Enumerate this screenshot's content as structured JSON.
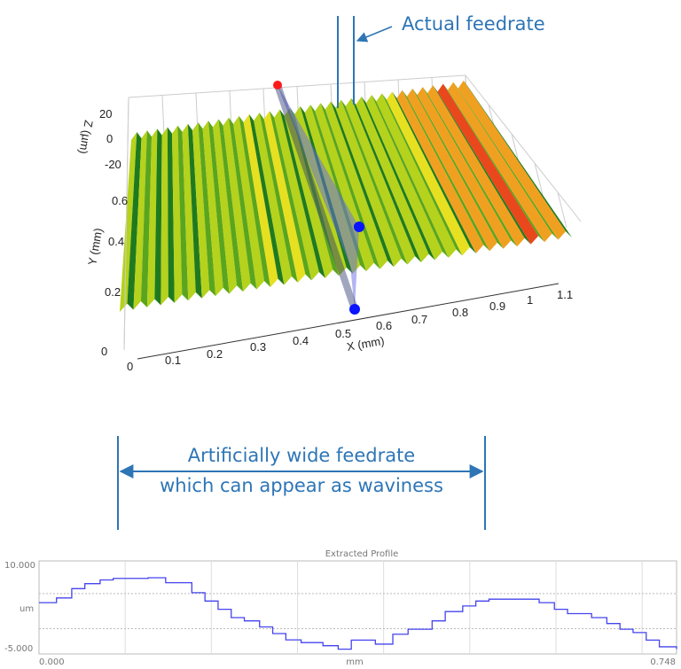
{
  "annotations": {
    "actual_feedrate": "Actual feedrate",
    "wide_line1": "Artificially wide feedrate",
    "wide_line2": "which can appear as waviness",
    "color": "#2E75B6"
  },
  "chart_data": [
    {
      "type": "surface3d",
      "x_axis": {
        "label": "X (mm)",
        "ticks": [
          "0",
          "0.1",
          "0.2",
          "0.3",
          "0.4",
          "0.5",
          "0.6",
          "0.7",
          "0.8",
          "0.9",
          "1",
          "1.1"
        ],
        "range": [
          0,
          1.1
        ]
      },
      "y_axis": {
        "label": "Y (mm)",
        "ticks": [
          "0",
          "0.2",
          "0.4",
          "0.6"
        ]
      },
      "z_axis": {
        "label": "Z (µm)",
        "ticks": [
          "20",
          "0",
          "-20"
        ]
      },
      "colormap": [
        "#1f7a1f",
        "#5aa51e",
        "#b5d21c",
        "#e6e020",
        "#f0a020",
        "#e8481c"
      ],
      "ridge_count": 33,
      "profile_plane_color": "#6a6ae8",
      "markers": [
        {
          "color": "#ff1a1a"
        },
        {
          "color": "#0a14ff"
        },
        {
          "color": "#0a14ff"
        }
      ]
    },
    {
      "type": "line",
      "title": "Extracted Profile",
      "xlabel": "mm",
      "ylabel": "um",
      "x_tick_labels": [
        "0.000",
        "0.748"
      ],
      "y_tick_labels": [
        "10.000",
        "-5.000"
      ],
      "xlim": [
        0,
        0.748
      ],
      "ylim": [
        -5,
        10
      ],
      "grid": true,
      "reference_lines": [
        5.3,
        -0.35
      ],
      "line_color": "#4444ee",
      "x": [
        0,
        0.0205,
        0.0384,
        0.0538,
        0.0717,
        0.0871,
        0.1281,
        0.1486,
        0.1793,
        0.1947,
        0.2101,
        0.2255,
        0.2409,
        0.2588,
        0.2742,
        0.2896,
        0.3075,
        0.3331,
        0.351,
        0.3664,
        0.3818,
        0.3946,
        0.4151,
        0.433,
        0.4612,
        0.4766,
        0.4971,
        0.5125,
        0.5279,
        0.5689,
        0.5868,
        0.6047,
        0.6201,
        0.6483,
        0.6662,
        0.6816,
        0.697,
        0.7124,
        0.7278,
        0.748
      ],
      "y": [
        3.84,
        4.6,
        6.1,
        6.9,
        7.5,
        7.75,
        7.86,
        7.05,
        5.45,
        4.1,
        2.77,
        1.43,
        0.9,
        -0.07,
        -1.14,
        -2.16,
        -2.6,
        -3.1,
        -3.66,
        -2.2,
        -2.2,
        -2.85,
        -1.25,
        -0.45,
        0.9,
        2.4,
        3.3,
        4.1,
        4.4,
        4.4,
        3.84,
        2.77,
        2.07,
        1.43,
        0.47,
        -0.45,
        -0.98,
        -2.2,
        -3.28,
        -3.66
      ]
    }
  ]
}
